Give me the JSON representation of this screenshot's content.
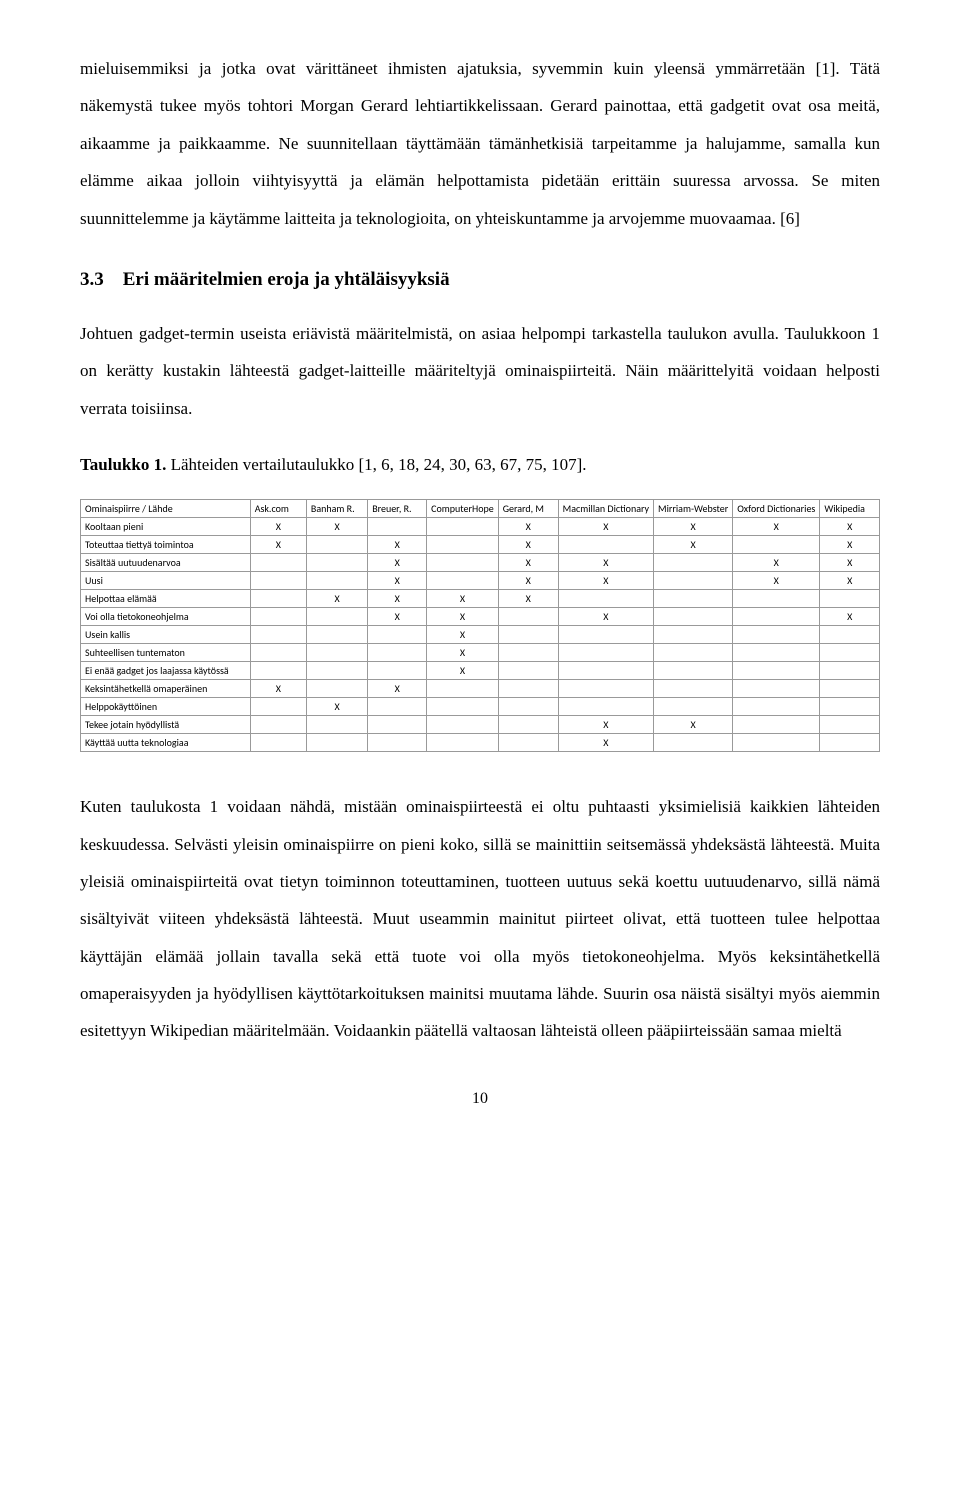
{
  "paragraphs": {
    "p1": "mieluisemmiksi ja jotka ovat värittäneet ihmisten ajatuksia, syvemmin kuin yleensä ymmärretään [1]. Tätä näkemystä tukee myös tohtori Morgan Gerard lehtiartikkelissaan. Gerard painottaa, että gadgetit ovat osa meitä, aikaamme ja paikkaamme. Ne suunnitellaan täyttämään tämänhetkisiä tarpeitamme ja halujamme, samalla kun elämme aikaa jolloin viihtyisyyttä ja elämän helpottamista pidetään erittäin suuressa arvossa. Se miten suunnittelemme ja käytämme laitteita ja teknologioita, on yhteiskuntamme ja arvojemme muovaamaa. [6]",
    "p2": "Johtuen gadget-termin useista eriävistä määritelmistä, on asiaa helpompi tarkastella taulukon avulla. Taulukkoon 1 on kerätty kustakin lähteestä gadget-laitteille määriteltyjä ominaispiirteitä. Näin määrittelyitä voidaan helposti verrata toisiinsa.",
    "p3": "Kuten taulukosta 1 voidaan nähdä, mistään ominaispiirteestä ei oltu puhtaasti yksimielisiä kaikkien lähteiden keskuudessa. Selvästi yleisin ominaispiirre on pieni koko, sillä se mainittiin seitsemässä yhdeksästä lähteestä. Muita yleisiä ominaispiirteitä ovat tietyn toiminnon toteuttaminen, tuotteen uutuus sekä koettu uutuudenarvo, sillä nämä sisältyivät viiteen yhdeksästä lähteestä. Muut useammin mainitut piirteet olivat, että tuotteen tulee helpottaa käyttäjän elämää jollain tavalla sekä että tuote voi olla myös tietokoneohjelma. Myös keksintähetkellä omaperaisyyden ja hyödyllisen käyttötarkoituksen mainitsi muutama lähde. Suurin osa näistä sisältyi myös aiemmin esitettyyn Wikipedian määritelmään. Voidaankin päätellä valtaosan lähteistä olleen pääpiirteissään samaa mieltä"
  },
  "heading": {
    "number": "3.3",
    "title": "Eri määritelmien eroja ja yhtäläisyyksiä"
  },
  "table_caption": {
    "label": "Taulukko 1.",
    "text": " Lähteiden vertailutaulukko [1, 6, 18, 24, 30, 63, 67, 75, 107]."
  },
  "table": {
    "corner": "Ominaispiirre / Lähde",
    "columns": [
      "Ask.com",
      "Banham R.",
      "Breuer, R.",
      "ComputerHope",
      "Gerard, M",
      "Macmillan Dictionary",
      "Mirriam-Webster",
      "Oxford Dictionaries",
      "Wikipedia"
    ],
    "rows": [
      {
        "label": "Kooltaan pieni",
        "marks": [
          1,
          1,
          0,
          0,
          1,
          1,
          1,
          1,
          1
        ]
      },
      {
        "label": "Toteuttaa tiettyä toimintoa",
        "marks": [
          1,
          0,
          1,
          0,
          1,
          0,
          1,
          0,
          1
        ]
      },
      {
        "label": "Sisältää uutuudenarvoa",
        "marks": [
          0,
          0,
          1,
          0,
          1,
          1,
          0,
          1,
          1
        ]
      },
      {
        "label": "Uusi",
        "marks": [
          0,
          0,
          1,
          0,
          1,
          1,
          0,
          1,
          1
        ]
      },
      {
        "label": "Helpottaa elämää",
        "marks": [
          0,
          1,
          1,
          1,
          1,
          0,
          0,
          0,
          0
        ]
      },
      {
        "label": "Voi olla tietokoneohjelma",
        "marks": [
          0,
          0,
          1,
          1,
          0,
          1,
          0,
          0,
          1
        ]
      },
      {
        "label": "Usein kallis",
        "marks": [
          0,
          0,
          0,
          1,
          0,
          0,
          0,
          0,
          0
        ]
      },
      {
        "label": "Suhteellisen tuntematon",
        "marks": [
          0,
          0,
          0,
          1,
          0,
          0,
          0,
          0,
          0
        ]
      },
      {
        "label": "Ei enää gadget jos laajassa käytössä",
        "marks": [
          0,
          0,
          0,
          1,
          0,
          0,
          0,
          0,
          0
        ]
      },
      {
        "label": "Keksintähetkellä omaperäinen",
        "marks": [
          1,
          0,
          1,
          0,
          0,
          0,
          0,
          0,
          0
        ]
      },
      {
        "label": "Helppokäyttöinen",
        "marks": [
          0,
          1,
          0,
          0,
          0,
          0,
          0,
          0,
          0
        ]
      },
      {
        "label": "Tekee jotain hyödyllistä",
        "marks": [
          0,
          0,
          0,
          0,
          0,
          1,
          1,
          0,
          0
        ]
      },
      {
        "label": "Käyttää uutta teknologiaa",
        "marks": [
          0,
          0,
          0,
          0,
          0,
          1,
          0,
          0,
          0
        ]
      }
    ],
    "mark_char": "X"
  },
  "page_number": "10"
}
